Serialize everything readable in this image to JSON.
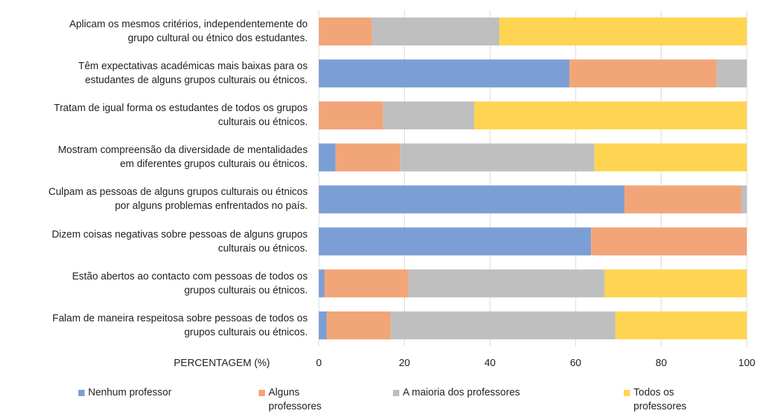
{
  "chart_data": {
    "type": "stacked-barh",
    "categories": [
      "Aplicam os mesmos critérios, independentemente do\ngrupo cultural ou étnico dos estudantes.",
      "Têm expectativas académicas mais baixas para os\nestudantes de alguns grupos culturais ou étnicos.",
      "Tratam de igual forma os estudantes de todos os grupos\nculturais ou étnicos.",
      "Mostram compreensão da diversidade de mentalidades\nem diferentes grupos culturais ou étnicos.",
      "Culpam as pessoas de alguns grupos culturais ou étnicos\npor alguns problemas enfrentados no país.",
      "Dizem coisas negativas sobre pessoas de alguns grupos\nculturais ou étnicos.",
      "Estão abertos ao contacto com pessoas de todos os\ngrupos culturais ou étnicos.",
      "Falam de maneira respeitosa sobre pessoas de todos os\ngrupos culturais ou étnicos."
    ],
    "series": [
      {
        "name": "Nenhum professor",
        "color": "#7b9fd4",
        "values": [
          0,
          58.5,
          0,
          3.9,
          71.4,
          63.6,
          1.3,
          1.8
        ]
      },
      {
        "name": "Alguns\nprofessores",
        "color": "#f2a578",
        "values": [
          12.4,
          34.5,
          15.0,
          15.1,
          27.3,
          36.4,
          19.6,
          15.0
        ]
      },
      {
        "name": "A maioria dos professores",
        "color": "#bfbfbf",
        "values": [
          29.8,
          7.0,
          21.3,
          45.4,
          1.3,
          0,
          45.9,
          52.5
        ]
      },
      {
        "name": "Todos os\nprofessores",
        "color": "#ffd452",
        "values": [
          57.8,
          0,
          63.7,
          35.6,
          0,
          0,
          33.2,
          30.7
        ]
      }
    ],
    "xlabel": "PERCENTAGEM (%)",
    "xlim": [
      0,
      100
    ],
    "xticks": [
      0,
      20,
      40,
      60,
      80,
      100
    ],
    "grid": true
  }
}
